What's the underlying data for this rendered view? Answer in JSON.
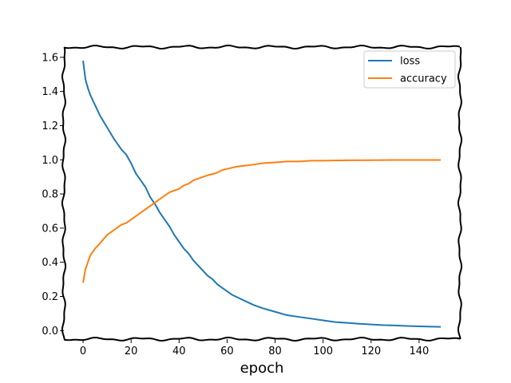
{
  "chart_data": {
    "type": "line",
    "title": "",
    "xlabel": "epoch",
    "ylabel": "",
    "xlim": [
      -8,
      157
    ],
    "ylim": [
      -0.05,
      1.66
    ],
    "xticks": [
      0,
      20,
      40,
      60,
      80,
      100,
      120,
      140
    ],
    "yticks": [
      0.0,
      0.2,
      0.4,
      0.6,
      0.8,
      1.0,
      1.2,
      1.4,
      1.6
    ],
    "grid": false,
    "legend_position": "top-right",
    "series": [
      {
        "name": "loss",
        "color": "#1f77b4",
        "points": [
          [
            0,
            1.58
          ],
          [
            1,
            1.47
          ],
          [
            2,
            1.42
          ],
          [
            3,
            1.38
          ],
          [
            5,
            1.32
          ],
          [
            7,
            1.26
          ],
          [
            10,
            1.19
          ],
          [
            13,
            1.12
          ],
          [
            16,
            1.06
          ],
          [
            18,
            1.03
          ],
          [
            20,
            0.98
          ],
          [
            22,
            0.92
          ],
          [
            24,
            0.88
          ],
          [
            26,
            0.84
          ],
          [
            28,
            0.78
          ],
          [
            30,
            0.74
          ],
          [
            32,
            0.69
          ],
          [
            34,
            0.65
          ],
          [
            36,
            0.61
          ],
          [
            38,
            0.56
          ],
          [
            40,
            0.52
          ],
          [
            42,
            0.48
          ],
          [
            44,
            0.45
          ],
          [
            46,
            0.41
          ],
          [
            48,
            0.38
          ],
          [
            50,
            0.35
          ],
          [
            52,
            0.32
          ],
          [
            54,
            0.3
          ],
          [
            56,
            0.27
          ],
          [
            58,
            0.25
          ],
          [
            60,
            0.23
          ],
          [
            62,
            0.21
          ],
          [
            65,
            0.19
          ],
          [
            68,
            0.17
          ],
          [
            71,
            0.15
          ],
          [
            75,
            0.13
          ],
          [
            80,
            0.11
          ],
          [
            85,
            0.09
          ],
          [
            90,
            0.08
          ],
          [
            95,
            0.07
          ],
          [
            100,
            0.06
          ],
          [
            105,
            0.05
          ],
          [
            110,
            0.045
          ],
          [
            115,
            0.04
          ],
          [
            120,
            0.036
          ],
          [
            125,
            0.032
          ],
          [
            130,
            0.03
          ],
          [
            135,
            0.027
          ],
          [
            140,
            0.025
          ],
          [
            145,
            0.023
          ],
          [
            149,
            0.022
          ]
        ]
      },
      {
        "name": "accuracy",
        "color": "#ff7f0e",
        "points": [
          [
            0,
            0.28
          ],
          [
            1,
            0.36
          ],
          [
            2,
            0.4
          ],
          [
            3,
            0.44
          ],
          [
            5,
            0.48
          ],
          [
            7,
            0.51
          ],
          [
            10,
            0.56
          ],
          [
            13,
            0.59
          ],
          [
            16,
            0.62
          ],
          [
            18,
            0.63
          ],
          [
            20,
            0.65
          ],
          [
            22,
            0.67
          ],
          [
            24,
            0.69
          ],
          [
            26,
            0.71
          ],
          [
            28,
            0.73
          ],
          [
            30,
            0.75
          ],
          [
            32,
            0.77
          ],
          [
            34,
            0.79
          ],
          [
            36,
            0.81
          ],
          [
            38,
            0.82
          ],
          [
            40,
            0.83
          ],
          [
            42,
            0.85
          ],
          [
            44,
            0.86
          ],
          [
            46,
            0.88
          ],
          [
            48,
            0.89
          ],
          [
            50,
            0.9
          ],
          [
            52,
            0.91
          ],
          [
            55,
            0.92
          ],
          [
            58,
            0.94
          ],
          [
            61,
            0.95
          ],
          [
            64,
            0.96
          ],
          [
            67,
            0.965
          ],
          [
            70,
            0.97
          ],
          [
            75,
            0.98
          ],
          [
            80,
            0.985
          ],
          [
            85,
            0.99
          ],
          [
            90,
            0.99
          ],
          [
            95,
            0.995
          ],
          [
            100,
            0.995
          ],
          [
            110,
            0.997
          ],
          [
            120,
            0.998
          ],
          [
            130,
            0.999
          ],
          [
            140,
            0.999
          ],
          [
            149,
            0.999
          ]
        ]
      }
    ]
  }
}
